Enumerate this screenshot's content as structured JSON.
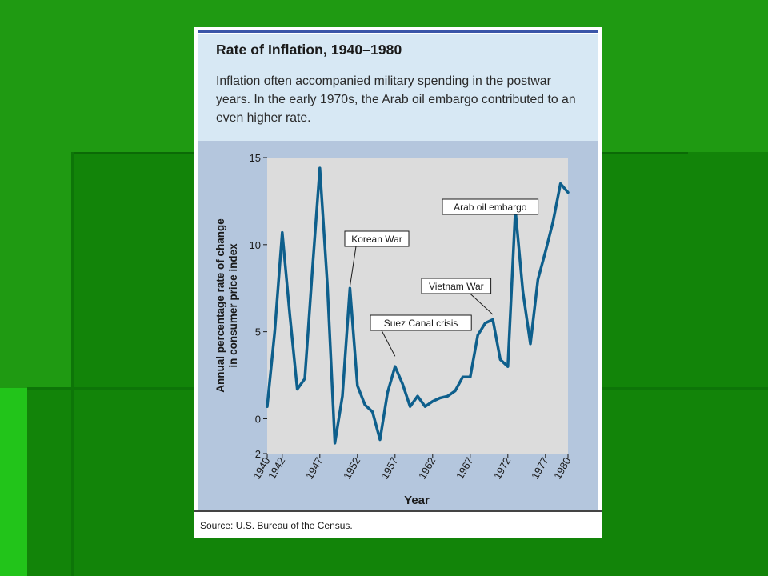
{
  "chart_data": {
    "type": "line",
    "title": "Rate of Inflation, 1940–1980",
    "description": "Inflation often accompanied military spending in the postwar years. In the early 1970s, the Arab oil embargo contributed to an even higher rate.",
    "xlabel": "Year",
    "ylabel_line1": "Annual percentage rate of change",
    "ylabel_line2": "in consumer price index",
    "source": "Source: U.S. Bureau of the Census.",
    "xlim": [
      1940,
      1980
    ],
    "ylim": [
      -2,
      15
    ],
    "x_ticks": [
      "1940",
      "1942",
      "1947",
      "1952",
      "1957",
      "1962",
      "1967",
      "1972",
      "1977",
      "1980"
    ],
    "y_ticks": [
      "15",
      "10",
      "5",
      "0",
      "−2"
    ],
    "series": [
      {
        "color": "#0e5f8c",
        "x": [
          1940,
          1941,
          1942,
          1943,
          1944,
          1945,
          1946,
          1947,
          1948,
          1949,
          1950,
          1951,
          1952,
          1953,
          1954,
          1955,
          1956,
          1957,
          1958,
          1959,
          1960,
          1961,
          1962,
          1963,
          1964,
          1965,
          1966,
          1967,
          1968,
          1969,
          1970,
          1971,
          1972,
          1973,
          1974,
          1975,
          1976,
          1977,
          1978,
          1979,
          1980
        ],
        "values": [
          0.7,
          5.0,
          10.7,
          6.0,
          1.7,
          2.3,
          8.5,
          14.4,
          7.7,
          -1.4,
          1.3,
          7.5,
          1.9,
          0.8,
          0.4,
          -1.2,
          1.5,
          3.0,
          2.0,
          0.7,
          1.3,
          0.7,
          1.0,
          1.2,
          1.3,
          1.6,
          2.4,
          2.4,
          4.8,
          5.5,
          5.7,
          3.4,
          3.0,
          12.0,
          7.3,
          4.3,
          8.0,
          9.6,
          11.3,
          13.5,
          13.0
        ]
      }
    ],
    "annotations": [
      {
        "label": "Korean War",
        "x": 1951,
        "y": 7.5
      },
      {
        "label": "Suez Canal crisis",
        "x": 1957,
        "y": 3.5
      },
      {
        "label": "Vietnam War",
        "x": 1970,
        "y": 5.9
      },
      {
        "label": "Arab oil embargo",
        "x": 1973,
        "y": 12.0
      }
    ]
  }
}
